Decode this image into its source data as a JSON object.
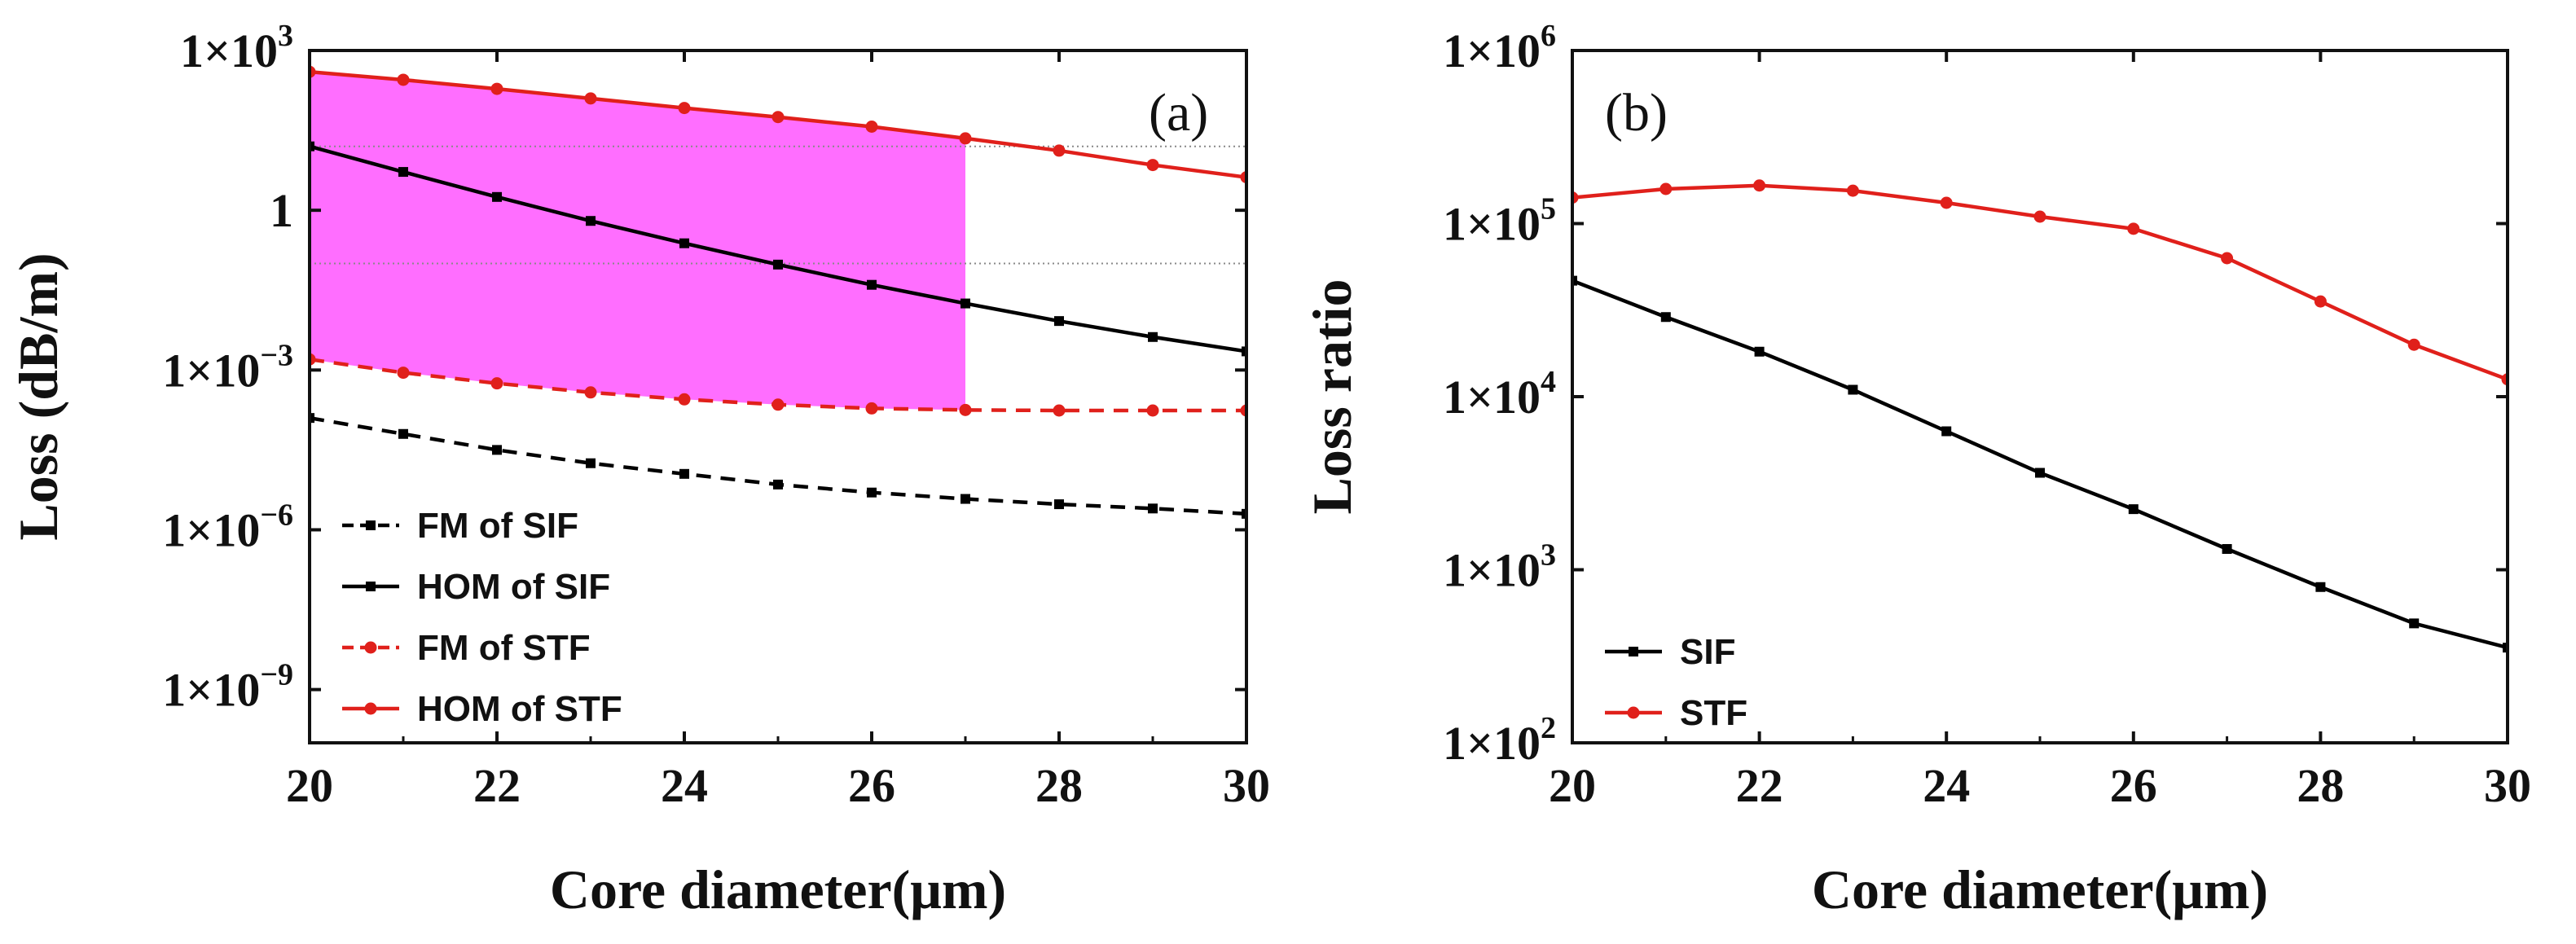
{
  "chart_data": [
    {
      "type": "line",
      "panel_label": "(a)",
      "xlabel": "Core diameter(μm)",
      "ylabel": "Loss (dB/m)",
      "xlim": [
        20,
        30
      ],
      "ylim_log10": [
        -10,
        3
      ],
      "y_scale": "log",
      "x_ticks": [
        "20",
        "22",
        "24",
        "26",
        "28",
        "30"
      ],
      "y_ticks": [
        {
          "log": 3,
          "base": "1×10",
          "exp": "3"
        },
        {
          "log": 0,
          "base": "1",
          "exp": ""
        },
        {
          "log": -3,
          "base": "1×10",
          "exp": "−3"
        },
        {
          "log": -6,
          "base": "1×10",
          "exp": "−6"
        },
        {
          "log": -9,
          "base": "1×10",
          "exp": "−9"
        }
      ],
      "legend_position": "bottom-left",
      "shaded_region": {
        "x_from": 20,
        "x_to": 27,
        "lower_series": "FM of STF",
        "upper_series": "HOM of STF",
        "color": "#ff66ff"
      },
      "reference_lines_log10": [
        1.2,
        -1.0
      ],
      "series": [
        {
          "name": "FM of SIF",
          "color": "#000000",
          "dashed": true,
          "marker": "square",
          "x": [
            20,
            21,
            22,
            23,
            24,
            25,
            26,
            27,
            28,
            29,
            30
          ],
          "log10_y": [
            -3.9,
            -4.2,
            -4.5,
            -4.75,
            -4.95,
            -5.15,
            -5.3,
            -5.42,
            -5.52,
            -5.6,
            -5.7
          ]
        },
        {
          "name": "HOM of SIF",
          "color": "#000000",
          "dashed": false,
          "marker": "square",
          "x": [
            20,
            21,
            22,
            23,
            24,
            25,
            26,
            27,
            28,
            29,
            30
          ],
          "log10_y": [
            1.2,
            0.72,
            0.25,
            -0.2,
            -0.62,
            -1.02,
            -1.4,
            -1.75,
            -2.08,
            -2.38,
            -2.65
          ]
        },
        {
          "name": "FM of STF",
          "color": "#e0201b",
          "dashed": true,
          "marker": "circle",
          "x": [
            20,
            21,
            22,
            23,
            24,
            25,
            26,
            27,
            28,
            29,
            30
          ],
          "log10_y": [
            -2.8,
            -3.05,
            -3.25,
            -3.42,
            -3.55,
            -3.65,
            -3.72,
            -3.75,
            -3.76,
            -3.76,
            -3.76
          ]
        },
        {
          "name": "HOM of STF",
          "color": "#e0201b",
          "dashed": false,
          "marker": "circle",
          "x": [
            20,
            21,
            22,
            23,
            24,
            25,
            26,
            27,
            28,
            29,
            30
          ],
          "log10_y": [
            2.6,
            2.45,
            2.28,
            2.1,
            1.92,
            1.75,
            1.57,
            1.35,
            1.12,
            0.85,
            0.62
          ]
        }
      ]
    },
    {
      "type": "line",
      "panel_label": "(b)",
      "xlabel": "Core diameter(μm)",
      "ylabel": "Loss ratio",
      "xlim": [
        20,
        30
      ],
      "ylim_log10": [
        2,
        6
      ],
      "y_scale": "log",
      "x_ticks": [
        "20",
        "22",
        "24",
        "26",
        "28",
        "30"
      ],
      "y_ticks": [
        {
          "log": 6,
          "base": "1×10",
          "exp": "6"
        },
        {
          "log": 5,
          "base": "1×10",
          "exp": "5"
        },
        {
          "log": 4,
          "base": "1×10",
          "exp": "4"
        },
        {
          "log": 3,
          "base": "1×10",
          "exp": "3"
        },
        {
          "log": 2,
          "base": "1×10",
          "exp": "2"
        }
      ],
      "legend_position": "bottom-left",
      "series": [
        {
          "name": "SIF",
          "color": "#000000",
          "dashed": false,
          "marker": "square",
          "x": [
            20,
            21,
            22,
            23,
            24,
            25,
            26,
            27,
            28,
            29,
            30
          ],
          "log10_y": [
            4.67,
            4.46,
            4.26,
            4.04,
            3.8,
            3.56,
            3.35,
            3.12,
            2.9,
            2.69,
            2.55
          ]
        },
        {
          "name": "STF",
          "color": "#e0201b",
          "dashed": false,
          "marker": "circle",
          "x": [
            20,
            21,
            22,
            23,
            24,
            25,
            26,
            27,
            28,
            29,
            30
          ],
          "log10_y": [
            5.15,
            5.2,
            5.22,
            5.19,
            5.12,
            5.04,
            4.97,
            4.8,
            4.55,
            4.3,
            4.1
          ]
        }
      ]
    }
  ]
}
